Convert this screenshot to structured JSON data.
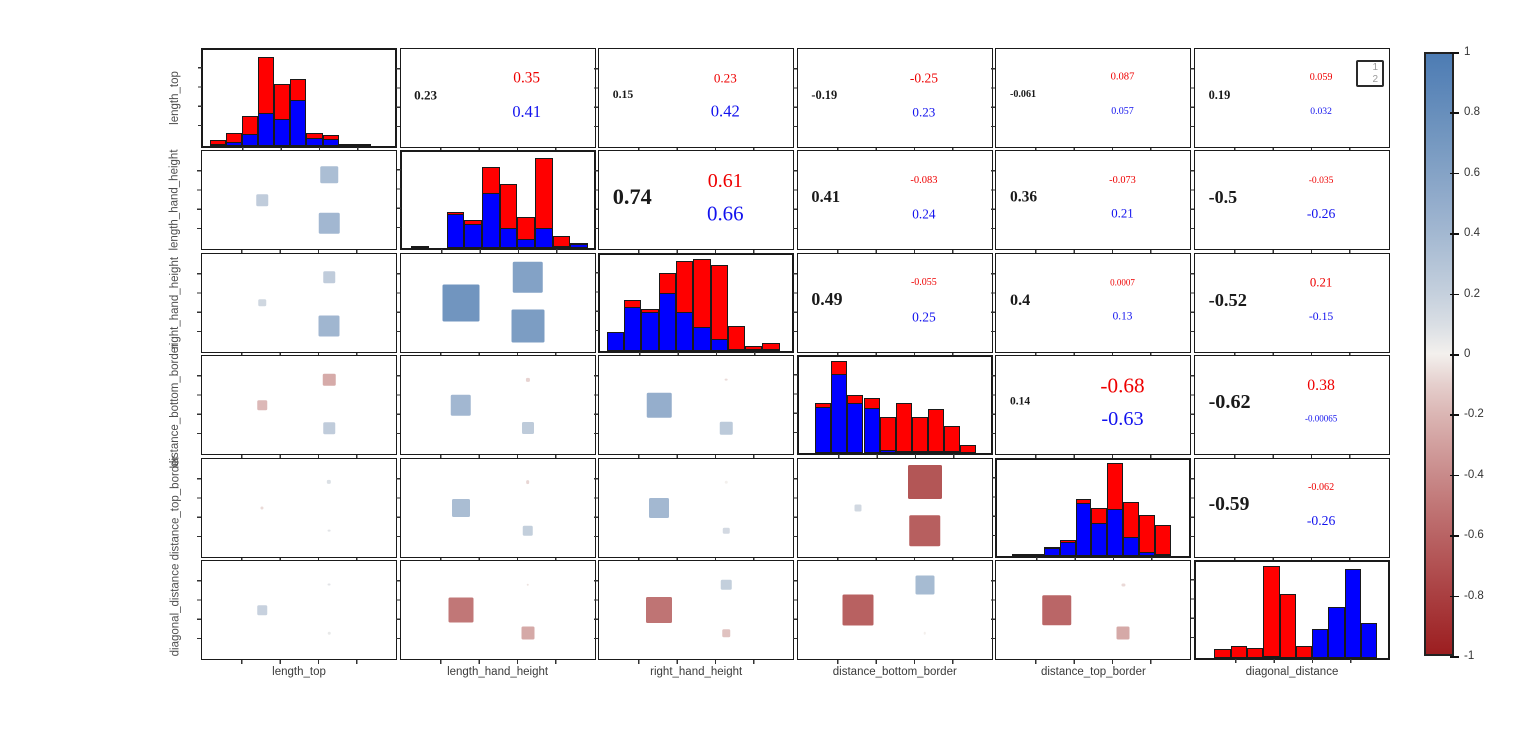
{
  "figure": {
    "background": "#ffffff",
    "legend": {
      "items": [
        "1",
        "2"
      ]
    }
  },
  "chart_data": {
    "type": "pairs-correlation-matrix",
    "description": "Scatterplot-matrix style correlation panel: diagonal = stacked two-group histograms (group1 red, group2 blue); upper triangle = correlation coefficients (black = overall, red = group 1, blue = group 2); lower triangle = squares sized/colored by the same correlations; right = blue-white-red colorbar from 1 to -1.",
    "variables": [
      "length_top",
      "length_hand_height",
      "right_hand_height",
      "distance_bottom_border",
      "distance_top_border",
      "diagonal_distance"
    ],
    "groups": [
      {
        "label": "1",
        "color": "#ff0000"
      },
      {
        "label": "2",
        "color": "#0000ff"
      }
    ],
    "pairs": [
      {
        "a": 0,
        "b": 1,
        "overall": 0.23,
        "overall_label": "0.23",
        "group1": 0.35,
        "group1_label": "0.35",
        "group2": 0.41,
        "group2_label": "0.41"
      },
      {
        "a": 0,
        "b": 2,
        "overall": 0.15,
        "overall_label": "0.15",
        "group1": 0.23,
        "group1_label": "0.23",
        "group2": 0.42,
        "group2_label": "0.42"
      },
      {
        "a": 0,
        "b": 3,
        "overall": -0.19,
        "overall_label": "-0.19",
        "group1": -0.25,
        "group1_label": "-0.25",
        "group2": 0.23,
        "group2_label": "0.23"
      },
      {
        "a": 0,
        "b": 4,
        "overall": -0.061,
        "overall_label": "-0.061",
        "group1": 0.087,
        "group1_label": "0.087",
        "group2": 0.057,
        "group2_label": "0.057"
      },
      {
        "a": 0,
        "b": 5,
        "overall": 0.19,
        "overall_label": "0.19",
        "group1": 0.059,
        "group1_label": "0.059",
        "group2": 0.032,
        "group2_label": "0.032"
      },
      {
        "a": 1,
        "b": 2,
        "overall": 0.74,
        "overall_label": "0.74",
        "group1": 0.61,
        "group1_label": "0.61",
        "group2": 0.66,
        "group2_label": "0.66"
      },
      {
        "a": 1,
        "b": 3,
        "overall": 0.41,
        "overall_label": "0.41",
        "group1": -0.083,
        "group1_label": "-0.083",
        "group2": 0.24,
        "group2_label": "0.24"
      },
      {
        "a": 1,
        "b": 4,
        "overall": 0.36,
        "overall_label": "0.36",
        "group1": -0.073,
        "group1_label": "-0.073",
        "group2": 0.21,
        "group2_label": "0.21"
      },
      {
        "a": 1,
        "b": 5,
        "overall": -0.5,
        "overall_label": "-0.5",
        "group1": -0.035,
        "group1_label": "-0.035",
        "group2": -0.26,
        "group2_label": "-0.26"
      },
      {
        "a": 2,
        "b": 3,
        "overall": 0.49,
        "overall_label": "0.49",
        "group1": -0.055,
        "group1_label": "-0.055",
        "group2": 0.25,
        "group2_label": "0.25"
      },
      {
        "a": 2,
        "b": 4,
        "overall": 0.4,
        "overall_label": "0.4",
        "group1": 0.0007,
        "group1_label": "0.0007",
        "group2": 0.13,
        "group2_label": "0.13"
      },
      {
        "a": 2,
        "b": 5,
        "overall": -0.52,
        "overall_label": "-0.52",
        "group1": 0.21,
        "group1_label": "0.21",
        "group2": -0.15,
        "group2_label": "-0.15"
      },
      {
        "a": 3,
        "b": 4,
        "overall": 0.14,
        "overall_label": "0.14",
        "group1": -0.68,
        "group1_label": "-0.68",
        "group2": -0.63,
        "group2_label": "-0.63"
      },
      {
        "a": 3,
        "b": 5,
        "overall": -0.62,
        "overall_label": "-0.62",
        "group1": 0.38,
        "group1_label": "0.38",
        "group2": -0.00065,
        "group2_label": "-0.00065"
      },
      {
        "a": 4,
        "b": 5,
        "overall": -0.59,
        "overall_label": "-0.59",
        "group1": -0.062,
        "group1_label": "-0.062",
        "group2": -0.26,
        "group2_label": "-0.26"
      }
    ],
    "histograms": [
      {
        "variable": "length_top",
        "bar_width": 0.084,
        "bars": [
          [
            0.035,
            0.06,
            0.025
          ],
          [
            0.119,
            0.14,
            0.04
          ],
          [
            0.203,
            0.33,
            0.13
          ],
          [
            0.287,
            0.97,
            0.36
          ],
          [
            0.371,
            0.67,
            0.29
          ],
          [
            0.455,
            0.73,
            0.5
          ],
          [
            0.539,
            0.14,
            0.09
          ],
          [
            0.623,
            0.12,
            0.08
          ],
          [
            0.707,
            0.02,
            0.008
          ],
          [
            0.791,
            0.02,
            0.008
          ]
        ]
      },
      {
        "variable": "length_hand_height",
        "bar_width": 0.092,
        "bars": [
          [
            0.05,
            0.02,
            0.01
          ],
          [
            0.235,
            0.4,
            0.37
          ],
          [
            0.327,
            0.31,
            0.27
          ],
          [
            0.419,
            0.88,
            0.6
          ],
          [
            0.511,
            0.7,
            0.22
          ],
          [
            0.603,
            0.34,
            0.1
          ],
          [
            0.695,
            0.98,
            0.22
          ],
          [
            0.787,
            0.14,
            0.03
          ],
          [
            0.879,
            0.06,
            0.045
          ]
        ]
      },
      {
        "variable": "right_hand_height",
        "bar_width": 0.09,
        "bars": [
          [
            0.035,
            0.2,
            0.2
          ],
          [
            0.125,
            0.55,
            0.47
          ],
          [
            0.215,
            0.45,
            0.42
          ],
          [
            0.305,
            0.84,
            0.63
          ],
          [
            0.395,
            0.97,
            0.42
          ],
          [
            0.485,
            1.0,
            0.26
          ],
          [
            0.575,
            0.93,
            0.13
          ],
          [
            0.665,
            0.27,
            0.02
          ],
          [
            0.755,
            0.05,
            0.012
          ],
          [
            0.845,
            0.09,
            0.02
          ]
        ]
      },
      {
        "variable": "distance_bottom_border",
        "bar_width": 0.084,
        "bars": [
          [
            0.085,
            0.54,
            0.5
          ],
          [
            0.169,
            1.0,
            0.86
          ],
          [
            0.253,
            0.63,
            0.55
          ],
          [
            0.337,
            0.6,
            0.49
          ],
          [
            0.421,
            0.39,
            0.03
          ],
          [
            0.505,
            0.55,
            0.015
          ],
          [
            0.589,
            0.39,
            0.01
          ],
          [
            0.673,
            0.48,
            0.012
          ],
          [
            0.757,
            0.29,
            0.006
          ],
          [
            0.841,
            0.09,
            0.004
          ]
        ]
      },
      {
        "variable": "distance_top_border",
        "bar_width": 0.083,
        "bars": [
          [
            0.075,
            0.02,
            0.008
          ],
          [
            0.158,
            0.02,
            0.008
          ],
          [
            0.241,
            0.09,
            0.08
          ],
          [
            0.324,
            0.17,
            0.15
          ],
          [
            0.407,
            0.61,
            0.57
          ],
          [
            0.49,
            0.52,
            0.35
          ],
          [
            0.573,
            1.0,
            0.51
          ],
          [
            0.656,
            0.58,
            0.2
          ],
          [
            0.739,
            0.44,
            0.04
          ],
          [
            0.822,
            0.33,
            0.012
          ]
        ]
      },
      {
        "variable": "diagonal_distance",
        "bar_width": 0.085,
        "bars": [
          [
            0.095,
            0.1,
            0
          ],
          [
            0.18,
            0.13,
            0
          ],
          [
            0.265,
            0.11,
            0
          ],
          [
            0.35,
            1.0,
            0.02
          ],
          [
            0.435,
            0.7,
            0
          ],
          [
            0.52,
            0.13,
            0
          ],
          [
            0.605,
            0.31,
            0.31
          ],
          [
            0.69,
            0.55,
            0.55
          ],
          [
            0.775,
            0.97,
            0.97
          ],
          [
            0.86,
            0.38,
            0.38
          ]
        ]
      }
    ],
    "colorbar": {
      "tick_labels": [
        "1",
        "0.8",
        "0.6",
        "0.4",
        "0.2",
        "0",
        "-0.2",
        "-0.4",
        "-0.6",
        "-0.8",
        "-1"
      ],
      "range": [
        -1,
        1
      ],
      "position": "right"
    },
    "colors": {
      "hist_group1": "#ff0000",
      "hist_group2": "#0000ff",
      "text_overall": "#1a1a1a",
      "text_group1": "#ee0000",
      "text_group2": "#1212ee",
      "corr_positive_end": "#4d7cb3",
      "corr_midpoint": "#f3f0ed",
      "corr_negative_end": "#9c1e20",
      "axis_label": "#4d4d4d"
    },
    "axes": {
      "x_labels": [
        "length_top",
        "length_hand_height",
        "right_hand_height",
        "distance_bottom_border",
        "distance_top_border",
        "diagonal_distance"
      ],
      "y_labels": [
        "length_top",
        "length_hand_height",
        "right_hand_height",
        "distance_bottom_border",
        "distance_top_border",
        "diagonal_distance"
      ]
    }
  }
}
